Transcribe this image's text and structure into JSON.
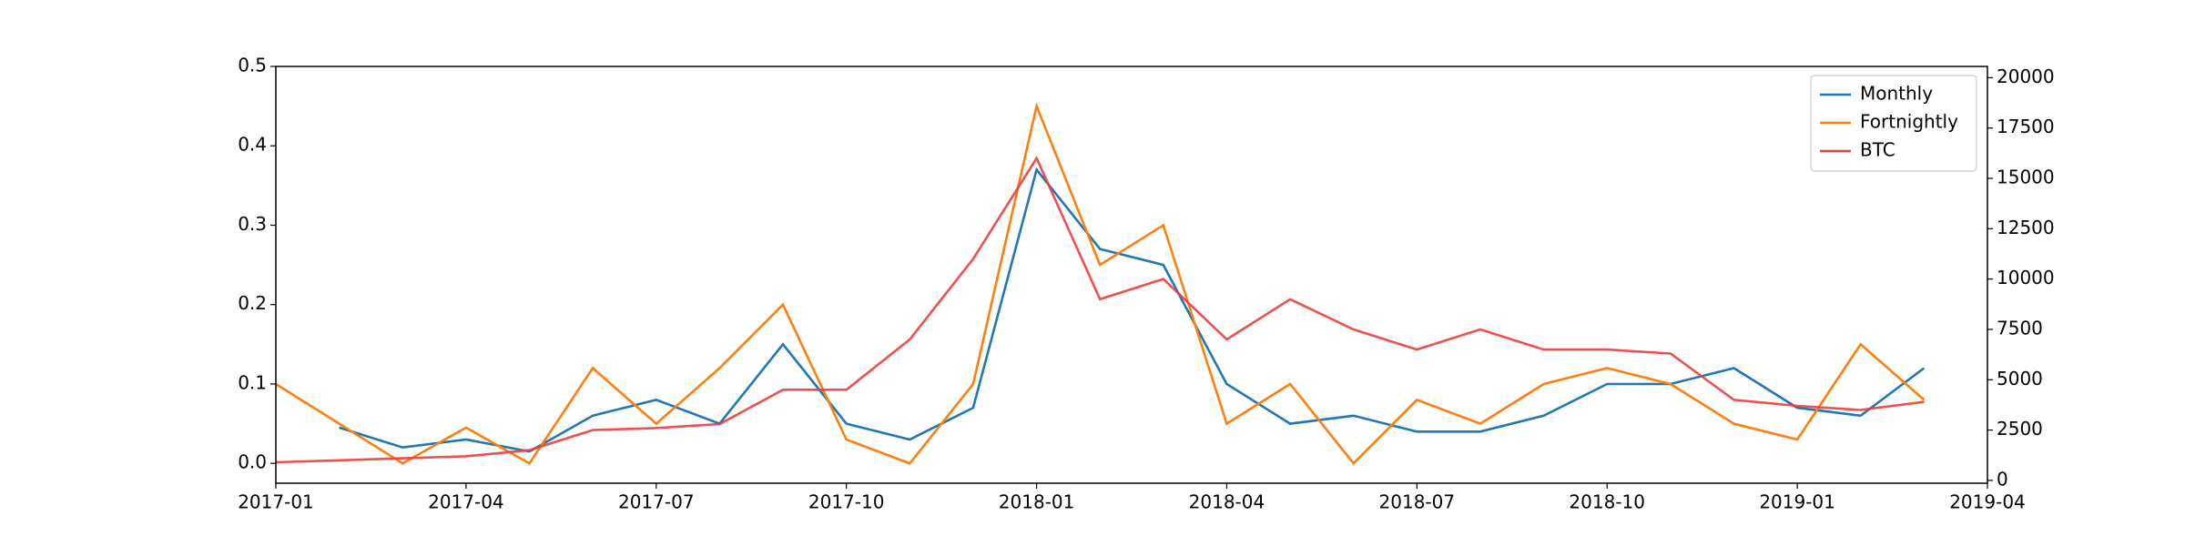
{
  "chart_data": {
    "type": "line",
    "x": [
      "2017-01",
      "2017-02",
      "2017-03",
      "2017-04",
      "2017-05",
      "2017-06",
      "2017-07",
      "2017-08",
      "2017-09",
      "2017-10",
      "2017-11",
      "2017-12",
      "2018-01",
      "2018-02",
      "2018-03",
      "2018-04",
      "2018-05",
      "2018-06",
      "2018-07",
      "2018-08",
      "2018-09",
      "2018-10",
      "2018-11",
      "2018-12",
      "2019-01",
      "2019-02",
      "2019-03"
    ],
    "series": [
      {
        "name": "Monthly",
        "color": "#1f77b4",
        "values": [
          null,
          0.045,
          0.02,
          0.03,
          0.015,
          0.06,
          0.08,
          0.05,
          0.15,
          0.05,
          0.03,
          0.07,
          0.37,
          0.27,
          0.25,
          0.1,
          0.05,
          0.06,
          0.04,
          0.04,
          0.06,
          0.1,
          0.1,
          0.12,
          0.07,
          0.06,
          0.12
        ]
      },
      {
        "name": "Fortnightly",
        "color": "#ff7f0e",
        "values": [
          0.1,
          0.05,
          0.0,
          0.045,
          0.0,
          0.12,
          0.05,
          0.12,
          0.2,
          0.03,
          0.0,
          0.1,
          0.45,
          0.25,
          0.3,
          0.05,
          0.1,
          0.0,
          0.08,
          0.05,
          0.1,
          0.12,
          0.1,
          0.05,
          0.03,
          0.15,
          0.08
        ]
      },
      {
        "name": "BTC",
        "color": "#f03c3c",
        "axis": "y2",
        "values": [
          900,
          1000,
          1100,
          1200,
          1500,
          2500,
          2600,
          2800,
          4500,
          4500,
          7000,
          11000,
          16000,
          9000,
          10000,
          7000,
          9000,
          7500,
          6500,
          7500,
          6500,
          6500,
          6300,
          4000,
          3700,
          3500,
          3900
        ]
      }
    ],
    "xlim": [
      "2017-01",
      "2019-04"
    ],
    "xticks": [
      "2017-01",
      "2017-04",
      "2017-07",
      "2017-10",
      "2018-01",
      "2018-04",
      "2018-07",
      "2018-10",
      "2019-01",
      "2019-04"
    ],
    "ylim": [
      -0.025,
      0.5
    ],
    "yticks": [
      {
        "value": 0,
        "label": "0.0"
      },
      0.1,
      0.2,
      0.3,
      0.4,
      0.5
    ],
    "y2lim": [
      -140,
      20560
    ],
    "y2ticks": [
      0,
      2500,
      5000,
      7500,
      10000,
      12500,
      15000,
      17500,
      20000
    ],
    "legend": "upper right"
  }
}
